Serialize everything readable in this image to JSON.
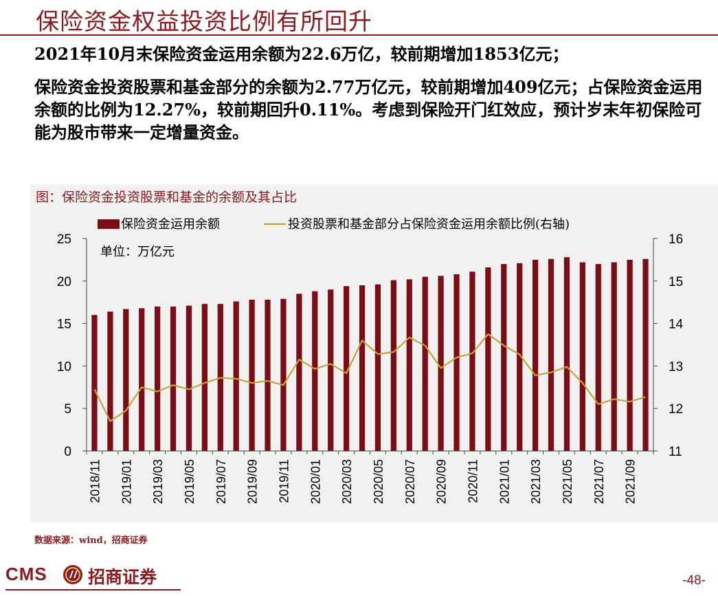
{
  "slide": {
    "title": "保险资金权益投资比例有所回升",
    "paragraph1": "2021年10月末保险资金运用余额为22.6万亿，较前期增加1853亿元；",
    "paragraph2": "保险资金投资股票和基金部分的余额为2.77万亿元，较前期增加409亿元；占保险资金运用余额的比例为12.27%，较前期回升0.11%。考虑到保险开门红效应，预计岁末年初保险可能为股市带来一定增量资金。",
    "chart_caption": "图：保险资金投资股票和基金的余额及其占比",
    "source": "数据来源：wind，招商证券",
    "logo_text": "CMS",
    "logo_cn": "招商证券",
    "page_number": "-48-"
  },
  "colors": {
    "brand": "#8b1a1f",
    "bar": "#7b0d14",
    "line": "#c8a23c",
    "chart_bg": "#f1f1f1"
  },
  "chart_data": {
    "type": "bar",
    "title": "图：保险资金投资股票和基金的余额及其占比",
    "unit_label": "单位：万亿元",
    "legend_placement": "top",
    "categories": [
      "2018/11",
      "2018/12",
      "2019/01",
      "2019/02",
      "2019/03",
      "2019/04",
      "2019/05",
      "2019/06",
      "2019/07",
      "2019/08",
      "2019/09",
      "2019/10",
      "2019/11",
      "2019/12",
      "2020/01",
      "2020/02",
      "2020/03",
      "2020/04",
      "2020/05",
      "2020/06",
      "2020/07",
      "2020/08",
      "2020/09",
      "2020/10",
      "2020/11",
      "2020/12",
      "2021/01",
      "2021/02",
      "2021/03",
      "2021/04",
      "2021/05",
      "2021/06",
      "2021/07",
      "2021/08",
      "2021/09",
      "2021/10"
    ],
    "x_tick_labels": [
      "2018/11",
      "2019/01",
      "2019/03",
      "2019/05",
      "2019/07",
      "2019/09",
      "2019/11",
      "2020/01",
      "2020/03",
      "2020/05",
      "2020/07",
      "2020/09",
      "2020/11",
      "2021/01",
      "2021/03",
      "2021/05",
      "2021/07",
      "2021/09"
    ],
    "series": [
      {
        "name": "保险资金运用余额",
        "type": "bar",
        "axis": "left",
        "values": [
          16.0,
          16.4,
          16.7,
          16.8,
          17.0,
          17.0,
          17.1,
          17.3,
          17.3,
          17.6,
          17.8,
          17.8,
          17.9,
          18.5,
          18.8,
          19.0,
          19.4,
          19.5,
          19.6,
          20.1,
          20.2,
          20.5,
          20.6,
          20.8,
          21.1,
          21.6,
          22.0,
          22.1,
          22.5,
          22.6,
          22.8,
          22.2,
          22.0,
          22.2,
          22.5,
          22.6
        ]
      },
      {
        "name": "投资股票和基金部分占保险资金运用余额比例(右轴)",
        "type": "line",
        "axis": "right",
        "values": [
          12.45,
          11.7,
          11.95,
          12.5,
          12.4,
          12.55,
          12.45,
          12.6,
          12.72,
          12.7,
          12.6,
          12.65,
          12.55,
          13.15,
          12.93,
          13.05,
          12.83,
          13.6,
          13.28,
          13.33,
          13.67,
          13.48,
          12.95,
          13.2,
          13.3,
          13.75,
          13.48,
          13.27,
          12.78,
          12.85,
          12.98,
          12.6,
          12.1,
          12.22,
          12.16,
          12.27
        ]
      }
    ],
    "y_left": {
      "min": 0,
      "max": 25,
      "ticks": [
        0,
        5,
        10,
        15,
        20,
        25
      ]
    },
    "y_right": {
      "min": 11,
      "max": 16,
      "ticks": [
        11,
        12,
        13,
        14,
        15,
        16
      ]
    }
  }
}
